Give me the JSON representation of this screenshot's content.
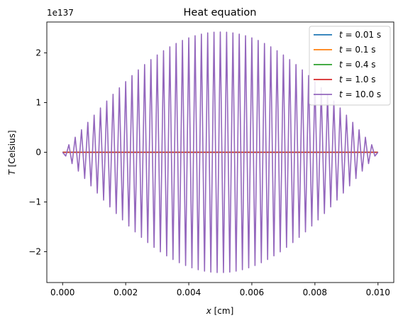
{
  "chart_data": {
    "type": "line",
    "title": "Heat equation",
    "xlabel": "x [cm]",
    "ylabel": "T [Celsius]",
    "y_offset_label": "1e137",
    "xlim": [
      -0.0005,
      0.0105
    ],
    "ylim": [
      -2.62,
      2.62
    ],
    "x_ticks": [
      0.0,
      0.002,
      0.004,
      0.006,
      0.008,
      0.01
    ],
    "x_tick_labels": [
      "0.000",
      "0.002",
      "0.004",
      "0.006",
      "0.008",
      "0.010"
    ],
    "y_ticks": [
      -2,
      -1,
      0,
      1,
      2
    ],
    "y_tick_labels": [
      "−2",
      "−1",
      "0",
      "1",
      "2"
    ],
    "grid": false,
    "legend_position": "top-right",
    "series": [
      {
        "name": "t = 0.01 s",
        "color": "#1f77b4",
        "profile": "flat",
        "value": 0
      },
      {
        "name": "t = 0.1 s",
        "color": "#ff7f0e",
        "profile": "flat",
        "value": 0
      },
      {
        "name": "t = 0.4 s",
        "color": "#2ca02c",
        "profile": "flat",
        "value": 0
      },
      {
        "name": "t = 1.0 s",
        "color": "#d62728",
        "profile": "flat",
        "value": 0
      },
      {
        "name": "t = 10.0 s",
        "color": "#9467bd",
        "profile": "alternating",
        "amplitude": 2.42,
        "x_start": 0.0,
        "x_end": 0.01,
        "points": 101
      }
    ]
  }
}
